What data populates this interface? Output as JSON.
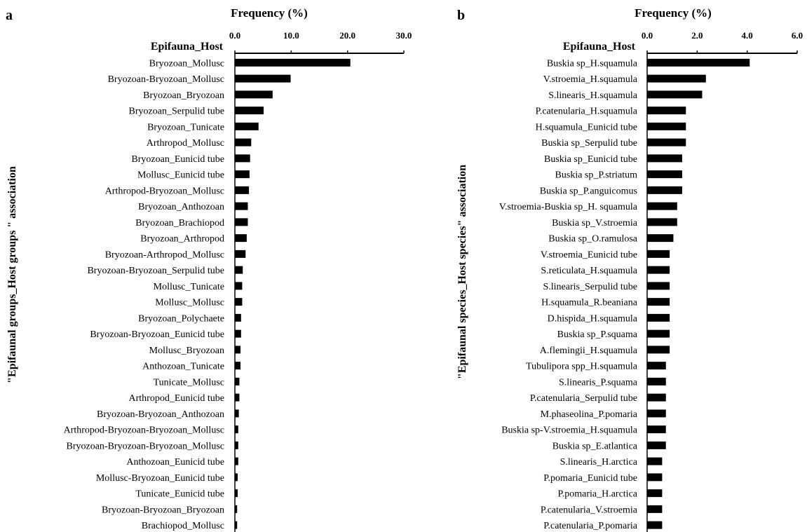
{
  "chart_data": [
    {
      "type": "bar",
      "orientation": "horizontal",
      "panel_label": "a",
      "title": "Frequency (%)",
      "category_header": "Epifauna_Host",
      "ylabel": "\"Epifaunal groups_Host groups \" association",
      "xlim": [
        0,
        30
      ],
      "xticks": [
        "0.0",
        "10.0",
        "20.0",
        "30.0"
      ],
      "grid": false,
      "categories": [
        "Bryozoan_Mollusc",
        "Bryozoan-Bryozoan_Mollusc",
        "Bryozoan_Bryozoan",
        "Bryozoan_Serpulid tube",
        "Bryozoan_Tunicate",
        "Arthropod_Mollusc",
        "Bryozoan_Eunicid tube",
        "Mollusc_Eunicid tube",
        "Arthropod-Bryozoan_Mollusc",
        "Bryozoan_Anthozoan",
        "Bryozoan_Brachiopod",
        "Bryozoan_Arthropod",
        "Bryozoan-Arthropod_Mollusc",
        "Bryozoan-Bryozoan_Serpulid tube",
        "Mollusc_Tunicate",
        "Mollusc_Mollusc",
        "Bryozoan_Polychaete",
        "Bryozoan-Bryozoan_Eunicid tube",
        "Mollusc_Bryozoan",
        "Anthozoan_Tunicate",
        "Tunicate_Mollusc",
        "Arthropod_Eunicid tube",
        "Bryozoan-Bryozoan_Anthozoan",
        "Arthropod-Bryozoan-Bryozoan_Mollusc",
        "Bryozoan-Bryozoan-Bryozoan_Mollusc",
        "Anthozoan_Eunicid tube",
        "Mollusc-Bryozoan_Eunicid tube",
        "Tunicate_Eunicid tube",
        "Bryozoan-Bryozoan_Bryozoan",
        "Brachiopod_Mollusc"
      ],
      "values": [
        20.5,
        9.9,
        6.7,
        5.1,
        4.2,
        2.9,
        2.7,
        2.6,
        2.5,
        2.3,
        2.3,
        2.1,
        1.9,
        1.4,
        1.3,
        1.3,
        1.1,
        1.1,
        1.0,
        1.0,
        0.8,
        0.8,
        0.7,
        0.6,
        0.6,
        0.6,
        0.5,
        0.5,
        0.4,
        0.4
      ]
    },
    {
      "type": "bar",
      "orientation": "horizontal",
      "panel_label": "b",
      "title": "Frequency (%)",
      "category_header": "Epifauna_Host",
      "ylabel": "\"Epifaunal species_Host species\" association",
      "xlim": [
        0,
        6
      ],
      "xticks": [
        "0.0",
        "2.0",
        "4.0",
        "6.0"
      ],
      "grid": false,
      "categories": [
        "Buskia sp_H.squamula",
        "V.stroemia_H.squamula",
        "S.linearis_H.squamula",
        "P.catenularia_H.squamula",
        "H.squamula_Eunicid tube",
        "Buskia sp_Serpulid tube",
        "Buskia sp_Eunicid tube",
        "Buskia sp_P.striatum",
        "Buskia sp_P.anguicomus",
        "V.stroemia-Buskia sp_H. squamula",
        "Buskia sp_V.stroemia",
        "Buskia sp_O.ramulosa",
        "V.stroemia_Eunicid tube",
        "S.reticulata_H.squamula",
        "S.linearis_Serpulid tube",
        "H.squamula_R.beaniana",
        "D.hispida_H.squamula",
        "Buskia sp_P.squama",
        "A.flemingii_H.squamula",
        "Tubulipora spp_H.squamula",
        "S.linearis_P.squama",
        "P.catenularia_Serpulid tube",
        "M.phaseolina_P.pomaria",
        "Buskia sp-V.stroemia_H.squamula",
        "Buskia sp_E.atlantica",
        "S.linearis_H.arctica",
        "P.pomaria_Eunicid tube",
        "P.pomaria_H.arctica",
        "P.catenularia_V.stroemia",
        "P.catenularia_P.pomaria"
      ],
      "values": [
        4.1,
        2.35,
        2.2,
        1.55,
        1.55,
        1.55,
        1.4,
        1.4,
        1.4,
        1.2,
        1.2,
        1.05,
        0.9,
        0.9,
        0.9,
        0.9,
        0.9,
        0.9,
        0.9,
        0.75,
        0.75,
        0.75,
        0.75,
        0.75,
        0.75,
        0.6,
        0.6,
        0.6,
        0.6,
        0.6
      ]
    }
  ]
}
